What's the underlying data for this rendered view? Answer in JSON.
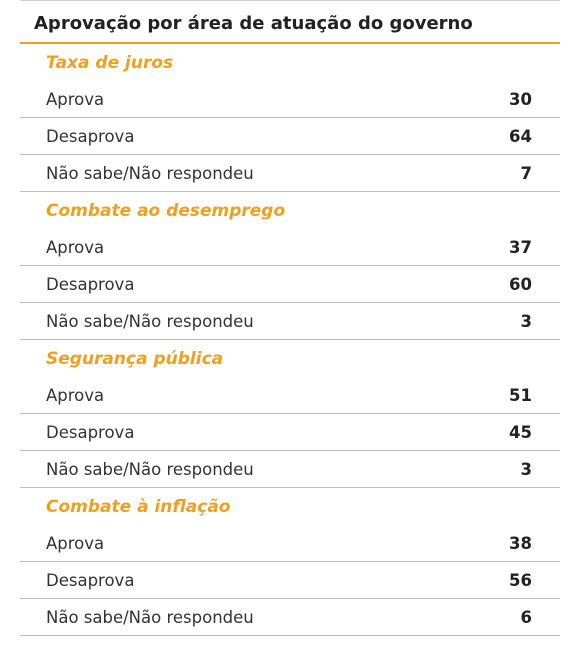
{
  "title": "Aprovação por área de atuação do governo",
  "sections": [
    {
      "name": "Taxa de juros",
      "rows": [
        {
          "label": "Aprova",
          "value": "30"
        },
        {
          "label": "Desaprova",
          "value": "64"
        },
        {
          "label": "Não sabe/Não respondeu",
          "value": "7"
        }
      ]
    },
    {
      "name": "Combate ao desemprego",
      "rows": [
        {
          "label": "Aprova",
          "value": "37"
        },
        {
          "label": "Desaprova",
          "value": "60"
        },
        {
          "label": "Não sabe/Não respondeu",
          "value": "3"
        }
      ]
    },
    {
      "name": "Segurança pública",
      "rows": [
        {
          "label": "Aprova",
          "value": "51"
        },
        {
          "label": "Desaprova",
          "value": "45"
        },
        {
          "label": "Não sabe/Não respondeu",
          "value": "3"
        }
      ]
    },
    {
      "name": "Combate à inflação",
      "rows": [
        {
          "label": "Aprova",
          "value": "38"
        },
        {
          "label": "Desaprova",
          "value": "56"
        },
        {
          "label": "Não sabe/Não respondeu",
          "value": "6"
        }
      ]
    }
  ],
  "colors": {
    "accent": "#f0a020",
    "rule": "#bdbdbd",
    "text": "#333333"
  }
}
